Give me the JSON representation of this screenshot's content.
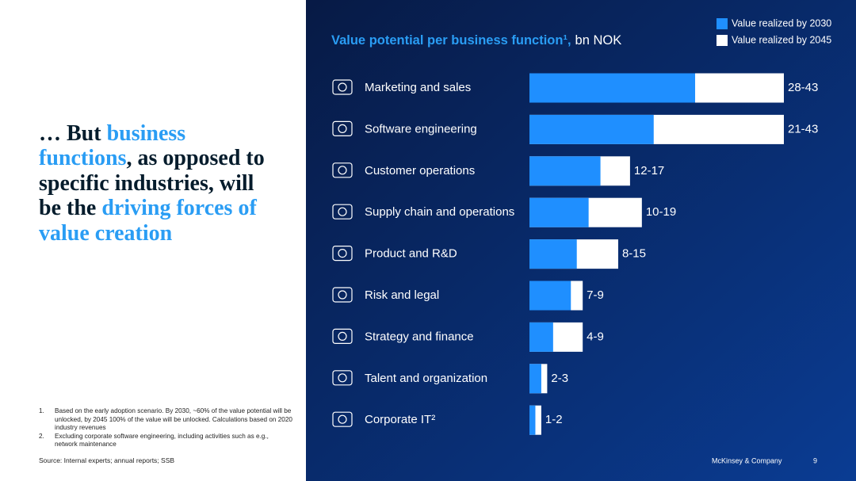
{
  "headline": [
    {
      "text": "… But ",
      "highlight": false
    },
    {
      "text": "business functions",
      "highlight": true
    },
    {
      "text": ", as opposed to specific industries, will be the ",
      "highlight": false
    },
    {
      "text": "driving forces of value creation",
      "highlight": true
    }
  ],
  "footnotes": [
    {
      "number": "1.",
      "text": "Based on the early adoption scenario.  By 2030, ~60% of the value potential will be unlocked, by 2045 100% of the value will be unlocked. Calculations based on 2020 industry revenues"
    },
    {
      "number": "2.",
      "text": "Excluding corporate software engineering, including activities such as e.g., network maintenance"
    }
  ],
  "source": "Source: Internal experts; annual reports; SSB",
  "footer": {
    "company": "McKinsey & Company",
    "page": 9
  },
  "chart_data": {
    "type": "bar",
    "orientation": "horizontal",
    "overlap": true,
    "title": "Value potential per business function¹,",
    "subtitle": "bn NOK",
    "categories": [
      "Marketing and sales",
      "Software engineering",
      "Customer operations",
      "Supply chain and operations",
      "Product and R&D",
      "Risk and legal",
      "Strategy and finance",
      "Talent and organization",
      "Corporate IT²"
    ],
    "series": [
      {
        "name": "Value realized by 2045",
        "color": "#ffffff",
        "values": [
          43,
          43,
          17,
          19,
          15,
          9,
          9,
          3,
          2
        ],
        "value_labels": [
          "28-43",
          "21-43",
          "12-17",
          "10-19",
          "8-15",
          "7-9",
          "4-9",
          "2-3",
          "1-2"
        ]
      },
      {
        "name": "Value realized by 2030",
        "color": "#1f8fff",
        "values": [
          28,
          21,
          12,
          10,
          8,
          7,
          4,
          2,
          1
        ]
      }
    ],
    "legend": "top-right"
  }
}
